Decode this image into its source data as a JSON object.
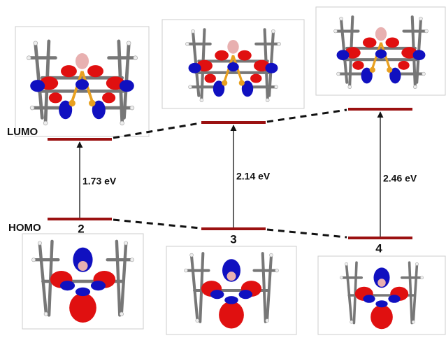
{
  "levels": {
    "lumo_label": "LUMO",
    "homo_label": "HOMO"
  },
  "compounds": [
    {
      "label": "2",
      "gap": "1.73 eV"
    },
    {
      "label": "3",
      "gap": "2.14 eV"
    },
    {
      "label": "4",
      "gap": "2.46 eV"
    }
  ]
}
